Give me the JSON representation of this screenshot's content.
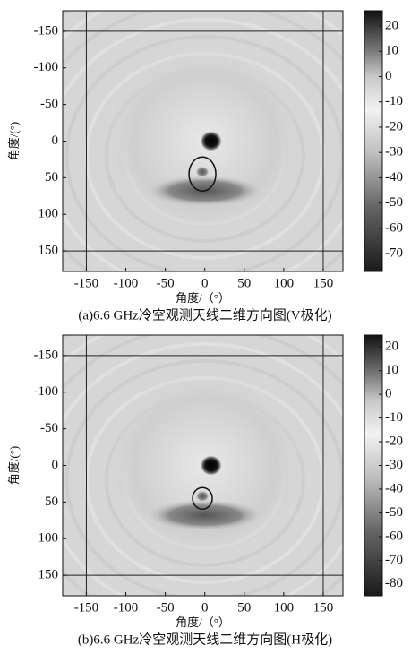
{
  "chart_data": [
    {
      "type": "heatmap",
      "title": "(a)6.6 GHz冷空观测天线二维方向图(V极化)",
      "xlabel": "角度/（°）",
      "ylabel": "角度/(°)",
      "xlim": [
        -180,
        175
      ],
      "ylim": [
        -178,
        178
      ],
      "y_inverted": true,
      "xticks": [
        -150,
        -100,
        -50,
        0,
        50,
        100,
        150
      ],
      "yticks": [
        -150,
        -100,
        -50,
        0,
        50,
        100,
        150
      ],
      "vlines": [
        -150,
        150
      ],
      "hlines": [
        -150,
        150
      ],
      "colorbar": {
        "lim": [
          -77,
          26
        ],
        "ticks": [
          20,
          10,
          0,
          -10,
          -20,
          -30,
          -40,
          -50,
          -60,
          -70
        ]
      }
    },
    {
      "type": "heatmap",
      "title": "(b)6.6 GHz冷空观测天线二维方向图(H极化)",
      "xlabel": "角度/（°）",
      "ylabel": "角度/(°)",
      "xlim": [
        -180,
        175
      ],
      "ylim": [
        -178,
        178
      ],
      "y_inverted": true,
      "xticks": [
        -150,
        -100,
        -50,
        0,
        50,
        100,
        150
      ],
      "yticks": [
        -150,
        -100,
        -50,
        0,
        50,
        100,
        150
      ],
      "vlines": [
        -150,
        150
      ],
      "hlines": [
        -150,
        150
      ],
      "colorbar": {
        "lim": [
          -85,
          25
        ],
        "ticks": [
          20,
          10,
          0,
          -10,
          -20,
          -30,
          -40,
          -50,
          -60,
          -70,
          -80
        ]
      }
    }
  ]
}
